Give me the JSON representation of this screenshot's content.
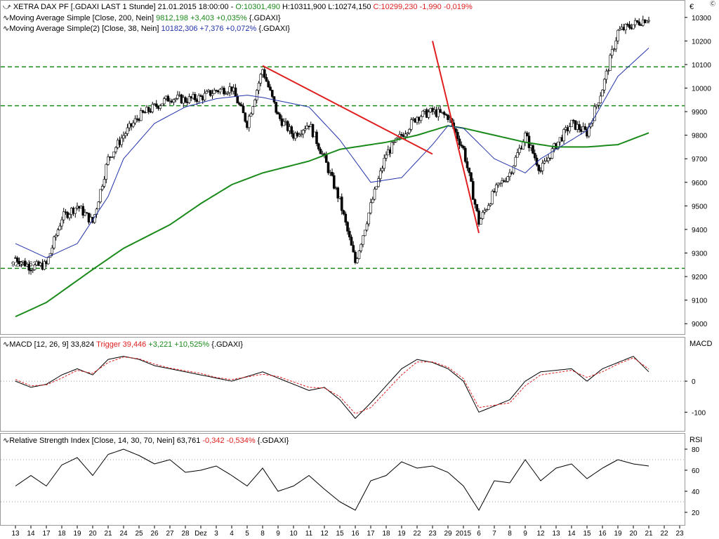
{
  "colors": {
    "candle_up": "#000000",
    "candle_down": "#000000",
    "sma200": "#1a8a1a",
    "sma38": "#2233aa",
    "trend": "#e02020",
    "hline": "#1a8a1a",
    "macd": "#000000",
    "trigger": "#e02020",
    "positive": "#1a8a1a",
    "negative": "#e02020",
    "info": "#2233aa"
  },
  "header": {
    "currency": "€",
    "corner": "Ⓒ",
    "line1": {
      "prefix": "XETRA DAX PF [.GDAXI LAST 1 Stunde] 21.01.2015 18:00:00 - ",
      "open": "O:10301,490",
      "high_low": " H:10311,900 L:10274,150 ",
      "close": "C:10299,230 -1,990 -0,019%"
    },
    "line2": {
      "prefix": "Moving Average Simple [Close, 200, Nein] ",
      "values": "9812,198 +3,403 +0,035%",
      "suffix": " {.GDAXI}"
    },
    "line3": {
      "prefix": "Moving Average Simple(2) [Close, 38, Nein] ",
      "values": "10182,306 +7,376 +0,072%",
      "suffix": " {.GDAXI}"
    }
  },
  "macd_header": {
    "prefix": "MACD [12, 26, 9] 33,824 ",
    "trigger": "Trigger 39,446",
    "change": " +3,221 +10,525%",
    "suffix": " {.GDAXI}"
  },
  "rsi_header": {
    "prefix": "Relative Strength Index [Close, 14, 30, 70, Nein] 63,761 ",
    "change": "-0,342 -0,534%",
    "suffix": " {.GDAXI}"
  },
  "chart_data": {
    "type": "candlestick",
    "price_axis": {
      "ylim": [
        8950,
        10350
      ],
      "ticks": [
        9000,
        9100,
        9200,
        9300,
        9400,
        9500,
        9600,
        9700,
        9800,
        9900,
        10000,
        10100,
        10200,
        10300
      ]
    },
    "macd_axis": {
      "title": "MACD",
      "ylim": [
        -140,
        120
      ],
      "ticks": [
        0,
        -100
      ]
    },
    "rsi_axis": {
      "title": "RSI",
      "ylim": [
        10,
        90
      ],
      "ticks": [
        80,
        60,
        40,
        20
      ],
      "levels": [
        30,
        70
      ]
    },
    "x_labels": [
      "13",
      "14",
      "17",
      "18",
      "19",
      "20",
      "21",
      "24",
      "25",
      "26",
      "27",
      "28",
      "Dez",
      "3",
      "4",
      "5",
      "8",
      "9",
      "10",
      "11",
      "12",
      "15",
      "16",
      "17",
      "18",
      "19",
      "22",
      "23",
      "29",
      "2015",
      "6",
      "7",
      "8",
      "9",
      "12",
      "13",
      "14",
      "15",
      "16",
      "19",
      "20",
      "21",
      "22",
      "23"
    ],
    "horizontal_levels": [
      10090,
      9925,
      9235
    ],
    "level_label": "9234,63",
    "trendlines": [
      {
        "from": [
          "8",
          10095
        ],
        "to": [
          "23",
          9720
        ]
      },
      {
        "from": [
          "6",
          9385
        ],
        "to": [
          "23",
          10200
        ]
      }
    ],
    "price_path": [
      [
        "13",
        9280
      ],
      [
        "14",
        9240
      ],
      [
        "17",
        9250
      ],
      [
        "18",
        9450
      ],
      [
        "19",
        9500
      ],
      [
        "20",
        9430
      ],
      [
        "21",
        9700
      ],
      [
        "24",
        9800
      ],
      [
        "25",
        9880
      ],
      [
        "26",
        9920
      ],
      [
        "27",
        9960
      ],
      [
        "28",
        9950
      ],
      [
        "Dez",
        9960
      ],
      [
        "3",
        9990
      ],
      [
        "4",
        10000
      ],
      [
        "5",
        9850
      ],
      [
        "8",
        10080
      ],
      [
        "9",
        9880
      ],
      [
        "10",
        9800
      ],
      [
        "11",
        9850
      ],
      [
        "12",
        9700
      ],
      [
        "15",
        9520
      ],
      [
        "16",
        9260
      ],
      [
        "17",
        9500
      ],
      [
        "18",
        9720
      ],
      [
        "19",
        9800
      ],
      [
        "22",
        9880
      ],
      [
        "23",
        9900
      ],
      [
        "29",
        9880
      ],
      [
        "2015",
        9740
      ],
      [
        "6",
        9430
      ],
      [
        "7",
        9560
      ],
      [
        "8",
        9640
      ],
      [
        "9",
        9800
      ],
      [
        "12",
        9650
      ],
      [
        "13",
        9760
      ],
      [
        "14",
        9850
      ],
      [
        "15",
        9810
      ],
      [
        "16",
        10000
      ],
      [
        "19",
        10240
      ],
      [
        "20",
        10270
      ],
      [
        "21",
        10300
      ]
    ],
    "sma200_path": [
      [
        "13",
        9030
      ],
      [
        "17",
        9090
      ],
      [
        "20",
        9230
      ],
      [
        "24",
        9320
      ],
      [
        "27",
        9420
      ],
      [
        "Dez",
        9510
      ],
      [
        "4",
        9590
      ],
      [
        "8",
        9640
      ],
      [
        "11",
        9690
      ],
      [
        "15",
        9740
      ],
      [
        "18",
        9770
      ],
      [
        "22",
        9800
      ],
      [
        "29",
        9840
      ],
      [
        "2015",
        9830
      ],
      [
        "7",
        9800
      ],
      [
        "9",
        9770
      ],
      [
        "13",
        9750
      ],
      [
        "15",
        9750
      ],
      [
        "19",
        9760
      ],
      [
        "21",
        9810
      ]
    ],
    "sma38_path": [
      [
        "13",
        9340
      ],
      [
        "17",
        9280
      ],
      [
        "19",
        9340
      ],
      [
        "21",
        9540
      ],
      [
        "24",
        9700
      ],
      [
        "26",
        9850
      ],
      [
        "28",
        9920
      ],
      [
        "3",
        9955
      ],
      [
        "5",
        9970
      ],
      [
        "8",
        9960
      ],
      [
        "11",
        9920
      ],
      [
        "15",
        9780
      ],
      [
        "17",
        9600
      ],
      [
        "19",
        9620
      ],
      [
        "23",
        9760
      ],
      [
        "29",
        9840
      ],
      [
        "2015",
        9830
      ],
      [
        "7",
        9700
      ],
      [
        "9",
        9640
      ],
      [
        "12",
        9700
      ],
      [
        "14",
        9780
      ],
      [
        "15",
        9820
      ],
      [
        "19",
        10050
      ],
      [
        "21",
        10170
      ]
    ],
    "macd_path": [
      [
        "13",
        0
      ],
      [
        "14",
        -20
      ],
      [
        "17",
        -10
      ],
      [
        "18",
        20
      ],
      [
        "19",
        40
      ],
      [
        "20",
        20
      ],
      [
        "21",
        70
      ],
      [
        "24",
        80
      ],
      [
        "25",
        70
      ],
      [
        "26",
        50
      ],
      [
        "27",
        40
      ],
      [
        "Dez",
        20
      ],
      [
        "3",
        10
      ],
      [
        "4",
        0
      ],
      [
        "8",
        30
      ],
      [
        "9",
        10
      ],
      [
        "11",
        -30
      ],
      [
        "12",
        -20
      ],
      [
        "15",
        -60
      ],
      [
        "16",
        -120
      ],
      [
        "17",
        -70
      ],
      [
        "19",
        40
      ],
      [
        "22",
        70
      ],
      [
        "23",
        60
      ],
      [
        "29",
        40
      ],
      [
        "2015",
        0
      ],
      [
        "6",
        -100
      ],
      [
        "8",
        -60
      ],
      [
        "9",
        0
      ],
      [
        "12",
        30
      ],
      [
        "14",
        40
      ],
      [
        "15",
        0
      ],
      [
        "16",
        40
      ],
      [
        "19",
        60
      ],
      [
        "20",
        80
      ],
      [
        "21",
        30
      ]
    ],
    "trigger_path": [
      [
        "13",
        5
      ],
      [
        "14",
        -15
      ],
      [
        "17",
        -12
      ],
      [
        "18",
        10
      ],
      [
        "19",
        35
      ],
      [
        "20",
        25
      ],
      [
        "21",
        60
      ],
      [
        "24",
        78
      ],
      [
        "25",
        72
      ],
      [
        "26",
        55
      ],
      [
        "27",
        42
      ],
      [
        "Dez",
        25
      ],
      [
        "3",
        12
      ],
      [
        "4",
        5
      ],
      [
        "8",
        22
      ],
      [
        "9",
        15
      ],
      [
        "11",
        -20
      ],
      [
        "12",
        -22
      ],
      [
        "15",
        -50
      ],
      [
        "16",
        -105
      ],
      [
        "17",
        -85
      ],
      [
        "19",
        20
      ],
      [
        "22",
        62
      ],
      [
        "23",
        62
      ],
      [
        "29",
        45
      ],
      [
        "2015",
        8
      ],
      [
        "6",
        -85
      ],
      [
        "8",
        -70
      ],
      [
        "9",
        -15
      ],
      [
        "12",
        20
      ],
      [
        "14",
        35
      ],
      [
        "15",
        12
      ],
      [
        "16",
        30
      ],
      [
        "19",
        55
      ],
      [
        "20",
        75
      ],
      [
        "21",
        39
      ]
    ],
    "rsi_path": [
      [
        "13",
        45
      ],
      [
        "14",
        55
      ],
      [
        "17",
        45
      ],
      [
        "18",
        65
      ],
      [
        "19",
        72
      ],
      [
        "20",
        55
      ],
      [
        "21",
        75
      ],
      [
        "24",
        80
      ],
      [
        "25",
        74
      ],
      [
        "26",
        66
      ],
      [
        "27",
        70
      ],
      [
        "28",
        58
      ],
      [
        "Dez",
        60
      ],
      [
        "3",
        64
      ],
      [
        "4",
        55
      ],
      [
        "5",
        45
      ],
      [
        "8",
        62
      ],
      [
        "9",
        40
      ],
      [
        "10",
        45
      ],
      [
        "11",
        55
      ],
      [
        "12",
        42
      ],
      [
        "15",
        30
      ],
      [
        "16",
        22
      ],
      [
        "17",
        50
      ],
      [
        "18",
        55
      ],
      [
        "19",
        68
      ],
      [
        "22",
        62
      ],
      [
        "23",
        64
      ],
      [
        "29",
        58
      ],
      [
        "2015",
        45
      ],
      [
        "6",
        22
      ],
      [
        "7",
        50
      ],
      [
        "8",
        48
      ],
      [
        "9",
        70
      ],
      [
        "12",
        50
      ],
      [
        "13",
        62
      ],
      [
        "14",
        66
      ],
      [
        "15",
        52
      ],
      [
        "16",
        62
      ],
      [
        "19",
        70
      ],
      [
        "20",
        66
      ],
      [
        "21",
        64
      ]
    ]
  }
}
